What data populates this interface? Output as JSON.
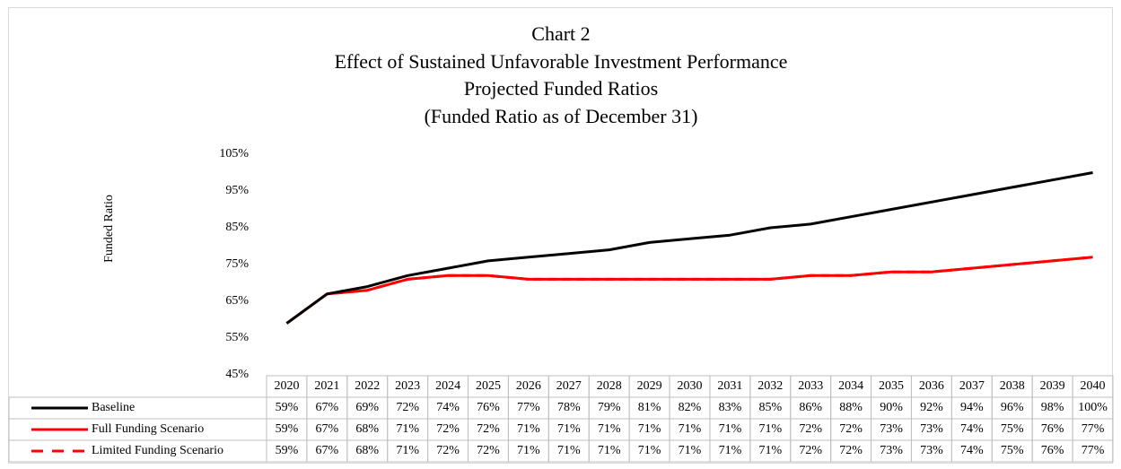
{
  "chart_data": {
    "type": "line",
    "title": "Chart 2",
    "subtitle": [
      "Effect of Sustained Unfavorable Investment Performance",
      "Projected Funded Ratios",
      "(Funded Ratio as of December 31)"
    ],
    "y_label": "Funded Ratio",
    "categories": [
      "2020",
      "2021",
      "2022",
      "2023",
      "2024",
      "2025",
      "2026",
      "2027",
      "2028",
      "2029",
      "2030",
      "2031",
      "2032",
      "2033",
      "2034",
      "2035",
      "2036",
      "2037",
      "2038",
      "2039",
      "2040"
    ],
    "ylim": [
      45,
      105
    ],
    "yticks": [
      {
        "value": 45,
        "label": "45%"
      },
      {
        "value": 55,
        "label": "55%"
      },
      {
        "value": 65,
        "label": "65%"
      },
      {
        "value": 75,
        "label": "75%"
      },
      {
        "value": 85,
        "label": "85%"
      },
      {
        "value": 95,
        "label": "95%"
      },
      {
        "value": 105,
        "label": "105%"
      }
    ],
    "grid": false,
    "data_table": true,
    "series": [
      {
        "name": "Limited Funding Scenario",
        "color": "#ff0000",
        "line_style": "dashed",
        "values": [
          59,
          67,
          68,
          71,
          72,
          72,
          71,
          71,
          71,
          71,
          71,
          71,
          71,
          72,
          72,
          73,
          73,
          74,
          75,
          76,
          77
        ],
        "value_labels": [
          "59%",
          "67%",
          "68%",
          "71%",
          "72%",
          "72%",
          "71%",
          "71%",
          "71%",
          "71%",
          "71%",
          "71%",
          "71%",
          "72%",
          "72%",
          "73%",
          "73%",
          "74%",
          "75%",
          "76%",
          "77%"
        ]
      },
      {
        "name": "Full Funding Scenario",
        "color": "#ff0000",
        "line_style": "solid",
        "values": [
          59,
          67,
          68,
          71,
          72,
          72,
          71,
          71,
          71,
          71,
          71,
          71,
          71,
          72,
          72,
          73,
          73,
          74,
          75,
          76,
          77
        ],
        "value_labels": [
          "59%",
          "67%",
          "68%",
          "71%",
          "72%",
          "72%",
          "71%",
          "71%",
          "71%",
          "71%",
          "71%",
          "71%",
          "71%",
          "72%",
          "72%",
          "73%",
          "73%",
          "74%",
          "75%",
          "76%",
          "77%"
        ]
      },
      {
        "name": "Baseline",
        "color": "#000000",
        "line_style": "solid",
        "values": [
          59,
          67,
          69,
          72,
          74,
          76,
          77,
          78,
          79,
          81,
          82,
          83,
          85,
          86,
          88,
          90,
          92,
          94,
          96,
          98,
          100
        ],
        "value_labels": [
          "59%",
          "67%",
          "69%",
          "72%",
          "74%",
          "76%",
          "77%",
          "78%",
          "79%",
          "81%",
          "82%",
          "83%",
          "85%",
          "86%",
          "88%",
          "90%",
          "92%",
          "94%",
          "96%",
          "98%",
          "100%"
        ]
      }
    ]
  }
}
